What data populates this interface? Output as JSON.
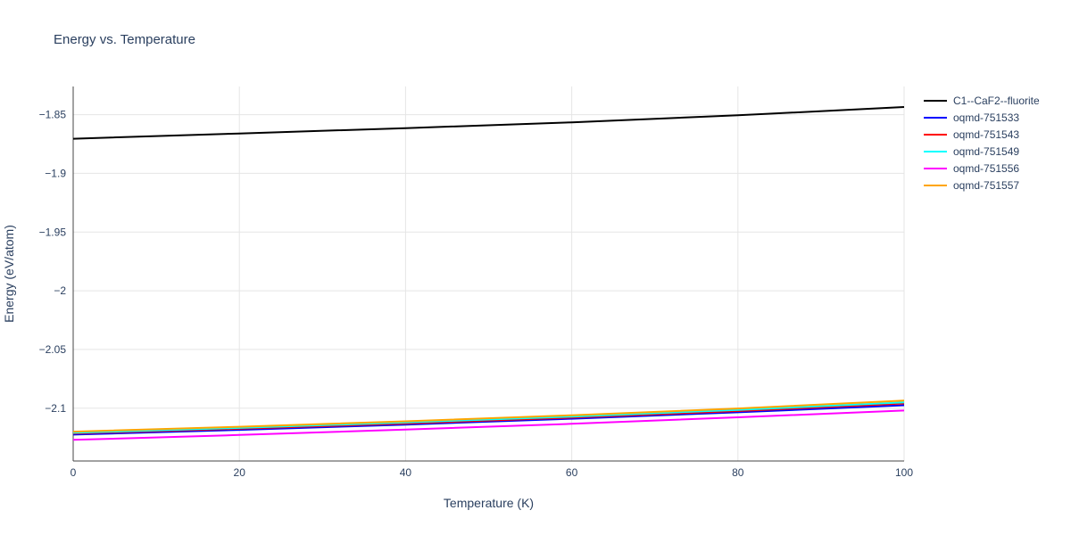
{
  "chart_data": {
    "type": "line",
    "title": "Energy vs. Temperature",
    "xlabel": "Temperature (K)",
    "ylabel": "Energy (eV/atom)",
    "x": [
      0,
      20,
      40,
      60,
      80,
      100
    ],
    "xlim": [
      0,
      100
    ],
    "ylim": [
      -2.145,
      -1.826
    ],
    "x_tick_values": [
      0,
      20,
      40,
      60,
      80,
      100
    ],
    "x_tick_labels": [
      "0",
      "20",
      "40",
      "60",
      "80",
      "100"
    ],
    "y_tick_values": [
      -1.85,
      -1.9,
      -1.95,
      -2,
      -2.05,
      -2.1
    ],
    "y_tick_labels": [
      "−1.85",
      "−1.9",
      "−1.95",
      "−2",
      "−2.05",
      "−2.1"
    ],
    "grid": true,
    "legend_position": "right-outside-top",
    "series": [
      {
        "name": "C1--CaF2--fluorite",
        "color": "#000000",
        "values": [
          -1.8705,
          -1.866,
          -1.8615,
          -1.8565,
          -1.8505,
          -1.8435
        ]
      },
      {
        "name": "oqmd-751533",
        "color": "#0000ff",
        "values": [
          -2.1225,
          -2.1185,
          -2.114,
          -2.109,
          -2.1035,
          -2.0975
        ]
      },
      {
        "name": "oqmd-751543",
        "color": "#ff0000",
        "values": [
          -2.1215,
          -2.1175,
          -2.113,
          -2.108,
          -2.1025,
          -2.096
        ]
      },
      {
        "name": "oqmd-751549",
        "color": "#00ffff",
        "values": [
          -2.121,
          -2.1168,
          -2.1122,
          -2.1072,
          -2.1015,
          -2.095
        ]
      },
      {
        "name": "oqmd-751556",
        "color": "#ff00ff",
        "values": [
          -2.127,
          -2.1228,
          -2.1183,
          -2.1133,
          -2.1078,
          -2.102
        ]
      },
      {
        "name": "oqmd-751557",
        "color": "#ffa500",
        "values": [
          -2.12,
          -2.1158,
          -2.1112,
          -2.106,
          -2.1003,
          -2.0935
        ]
      }
    ]
  },
  "style": {
    "text_color": "#2a3f5f",
    "grid_color": "#e5e5e5",
    "axis_line_color": "#444444",
    "background": "#ffffff"
  }
}
